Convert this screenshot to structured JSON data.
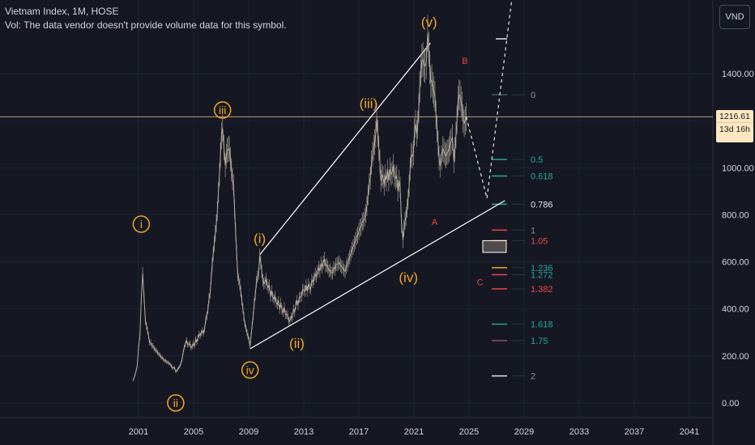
{
  "header": {
    "title": "Vietnam Index, 1M, HOSE",
    "vol_note": "Vol: The data vendor doesn't provide volume data for this symbol."
  },
  "currency_label": "VND",
  "last_price": {
    "value": "1216.61",
    "countdown": "13d 16h",
    "color": "#ffe7c2"
  },
  "colors": {
    "background": "#151823",
    "candles": "#b8ad9c",
    "wave": "#f5a623",
    "abc": "#ef4444",
    "fib_green": "#26a69a",
    "fib_red": "#ef4444",
    "fib_white": "#e6e6e6",
    "channel": "#ffffff"
  },
  "chart_data": {
    "type": "line",
    "x_ticks": [
      "2001",
      "2005",
      "2009",
      "2013",
      "2017",
      "2021",
      "2025",
      "2029",
      "2033",
      "2037",
      "2041"
    ],
    "y_ticks": [
      "0.00",
      "200.00",
      "400.00",
      "600.00",
      "800.00",
      "1000.00",
      "1200.00",
      "1400.00"
    ],
    "xlim": [
      2000,
      2043
    ],
    "ylim": [
      -50,
      1700
    ],
    "series": [
      {
        "values_xy": [
          [
            2000.6,
            100
          ],
          [
            2000.9,
            150
          ],
          [
            2001.1,
            300
          ],
          [
            2001.3,
            560
          ],
          [
            2001.5,
            350
          ],
          [
            2001.8,
            260
          ],
          [
            2002.3,
            220
          ],
          [
            2002.8,
            185
          ],
          [
            2003.3,
            165
          ],
          [
            2003.7,
            140
          ],
          [
            2004.0,
            150
          ],
          [
            2004.4,
            260
          ],
          [
            2004.9,
            240
          ],
          [
            2005.4,
            280
          ],
          [
            2005.8,
            310
          ],
          [
            2006.2,
            480
          ],
          [
            2006.5,
            650
          ],
          [
            2006.8,
            920
          ],
          [
            2007.1,
            1170
          ],
          [
            2007.3,
            1000
          ],
          [
            2007.6,
            1080
          ],
          [
            2007.9,
            920
          ],
          [
            2008.2,
            560
          ],
          [
            2008.5,
            420
          ],
          [
            2008.8,
            330
          ],
          [
            2009.1,
            235
          ],
          [
            2009.4,
            420
          ],
          [
            2009.8,
            600
          ],
          [
            2010.1,
            520
          ],
          [
            2010.5,
            480
          ],
          [
            2011.0,
            430
          ],
          [
            2011.5,
            400
          ],
          [
            2012.0,
            350
          ],
          [
            2012.5,
            420
          ],
          [
            2013.0,
            480
          ],
          [
            2013.5,
            500
          ],
          [
            2014.0,
            560
          ],
          [
            2014.5,
            600
          ],
          [
            2015.0,
            550
          ],
          [
            2015.5,
            600
          ],
          [
            2016.0,
            560
          ],
          [
            2016.5,
            650
          ],
          [
            2017.0,
            730
          ],
          [
            2017.5,
            800
          ],
          [
            2018.0,
            1050
          ],
          [
            2018.3,
            1200
          ],
          [
            2018.6,
            980
          ],
          [
            2019.0,
            960
          ],
          [
            2019.5,
            990
          ],
          [
            2020.0,
            900
          ],
          [
            2020.2,
            660
          ],
          [
            2020.5,
            850
          ],
          [
            2020.8,
            1050
          ],
          [
            2021.2,
            1200
          ],
          [
            2021.5,
            1380
          ],
          [
            2021.8,
            1440
          ],
          [
            2022.0,
            1520
          ],
          [
            2022.3,
            1400
          ],
          [
            2022.6,
            1230
          ],
          [
            2022.9,
            980
          ],
          [
            2023.1,
            1080
          ],
          [
            2023.4,
            1050
          ],
          [
            2023.7,
            1150
          ],
          [
            2023.9,
            1050
          ],
          [
            2024.2,
            1250
          ],
          [
            2024.5,
            1280
          ],
          [
            2024.8,
            1216
          ]
        ]
      }
    ],
    "projection": [
      [
        2024.8,
        1216
      ],
      [
        2026.3,
        870
      ],
      [
        2027.0,
        1200
      ],
      [
        2028.5,
        1900
      ]
    ],
    "channel_upper": [
      [
        2009.8,
        630
      ],
      [
        2022.2,
        1530
      ]
    ],
    "channel_lower": [
      [
        2009.1,
        230
      ],
      [
        2027.6,
        860
      ]
    ],
    "highlight_box": {
      "x": [
        2026.0,
        2027.7
      ],
      "y": [
        640,
        690
      ]
    },
    "wave_labels": [
      {
        "text": "i",
        "x": 2001.2,
        "y": 760,
        "circled": true
      },
      {
        "text": "ii",
        "x": 2003.7,
        "y": 0,
        "circled": true
      },
      {
        "text": "iii",
        "x": 2007.1,
        "y": 1245,
        "circled": true
      },
      {
        "text": "iv",
        "x": 2009.1,
        "y": 140,
        "circled": true
      },
      {
        "text": "(i)",
        "x": 2009.8,
        "y": 700,
        "circled": false
      },
      {
        "text": "(ii)",
        "x": 2012.5,
        "y": 255,
        "circled": false
      },
      {
        "text": "(iii)",
        "x": 2017.7,
        "y": 1275,
        "circled": false
      },
      {
        "text": "(iv)",
        "x": 2020.6,
        "y": 535,
        "circled": false
      },
      {
        "text": "(v)",
        "x": 2022.1,
        "y": 1620,
        "circled": false
      }
    ],
    "abc_labels": [
      {
        "text": "A",
        "x": 2022.5,
        "y": 770
      },
      {
        "text": "B",
        "x": 2024.7,
        "y": 1455
      },
      {
        "text": "C",
        "x": 2025.8,
        "y": 515
      }
    ],
    "fib_levels": [
      {
        "label": "0",
        "value": 1310,
        "color": "#26a69a",
        "label_color": "#8a8f9a",
        "line_color": "#3a5c58"
      },
      {
        "label": "0.5",
        "value": 1035,
        "color": "#26a69a",
        "label_color": "#26a69a",
        "line_color": "#26a69a"
      },
      {
        "label": "0.618",
        "value": 965,
        "color": "#26a69a",
        "label_color": "#26a69a",
        "line_color": "#26a69a"
      },
      {
        "label": "0.786",
        "value": 845,
        "color": "#26a69a",
        "label_color": "#e6e6e6",
        "line_color": "#26a69a"
      },
      {
        "label": "1",
        "value": 735,
        "color": "#ef4444",
        "label_color": "#8a8f9a",
        "line_color": "#ef4444"
      },
      {
        "label": "1.05",
        "value": 690,
        "color": "#ef4444",
        "label_color": "#ef4444",
        "line_color": "#ef4444"
      },
      {
        "label": "1.236",
        "value": 575,
        "color": "#f5a623",
        "label_color": "#26a69a",
        "line_color": "#f5a623"
      },
      {
        "label": "1.272",
        "value": 545,
        "color": "#26a69a",
        "label_color": "#26a69a",
        "line_color": "#ef4444"
      },
      {
        "label": "1.382",
        "value": 485,
        "color": "#ef4444",
        "label_color": "#ef4444",
        "line_color": "#ef4444"
      },
      {
        "label": "1.618",
        "value": 335,
        "color": "#26a69a",
        "label_color": "#26a69a",
        "line_color": "#26a69a"
      },
      {
        "label": "1.75",
        "value": 265,
        "color": "#26a69a",
        "label_color": "#26a69a",
        "line_color": "#9c4f6a"
      },
      {
        "label": "2",
        "value": 115,
        "color": "#26a69a",
        "label_color": "#8a8f9a",
        "line_color": "#e6e6e6"
      }
    ],
    "price_line": 1216.61
  }
}
